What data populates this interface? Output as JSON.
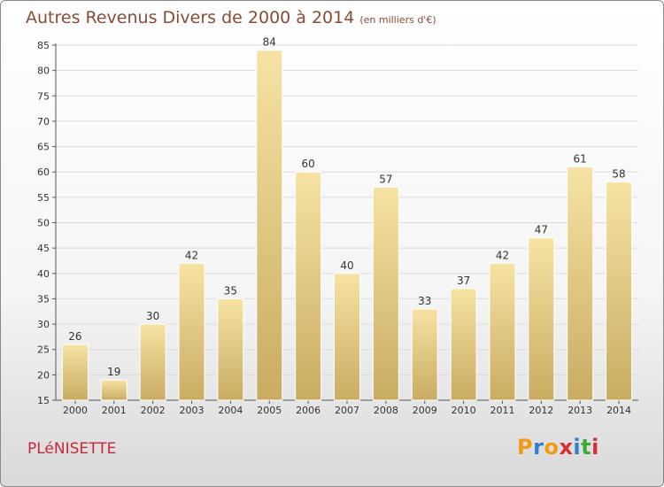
{
  "header": {
    "title": "Autres Revenus Divers de 2000 à 2014",
    "subtitle": "(en milliers d'€)"
  },
  "footer": {
    "commune": "PLéNISETTE",
    "logo_letters": [
      "P",
      "r",
      "o",
      "x",
      "i",
      "t",
      "i"
    ],
    "logo_colors": [
      "#f39c12",
      "#2e7fd1",
      "#f39c12",
      "#d92e2e",
      "#2e7fd1",
      "#3aaa35",
      "#d92e2e"
    ]
  },
  "colors": {
    "bar_light": "#f6e3a3",
    "bar_dark": "#c9ac62",
    "grid": "#dcdcdc",
    "title": "#8a4b36",
    "commune": "#c8283a"
  },
  "chart_data": {
    "type": "bar",
    "title": "Autres Revenus Divers de 2000 à 2014",
    "subtitle": "(en milliers d'€)",
    "categories": [
      "2000",
      "2001",
      "2002",
      "2003",
      "2004",
      "2005",
      "2006",
      "2007",
      "2008",
      "2009",
      "2010",
      "2011",
      "2012",
      "2013",
      "2014"
    ],
    "values": [
      26,
      19,
      30,
      42,
      35,
      84,
      60,
      40,
      57,
      33,
      37,
      42,
      47,
      61,
      58
    ],
    "ylim": [
      15,
      85
    ],
    "yticks": [
      15,
      20,
      25,
      30,
      35,
      40,
      45,
      50,
      55,
      60,
      65,
      70,
      75,
      80,
      85
    ],
    "grid": true,
    "data_labels": true
  }
}
